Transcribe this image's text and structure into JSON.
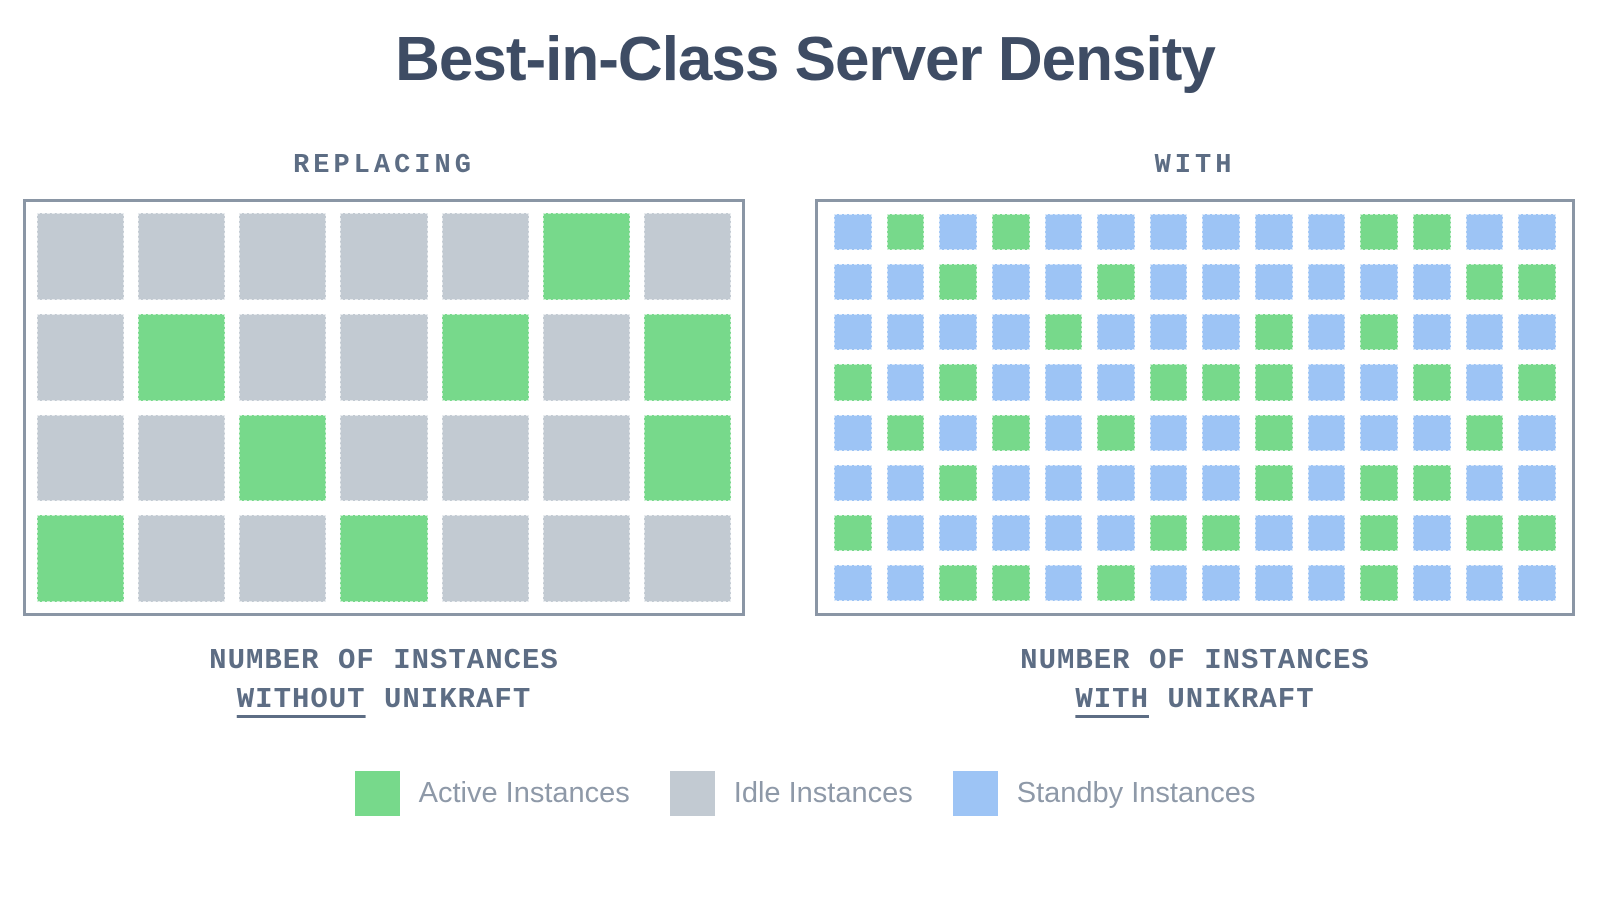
{
  "title": "Best-in-Class Server Density",
  "colors": {
    "active": "#77d98b",
    "idle": "#c2cad2",
    "standby": "#9dc4f5",
    "title_text": "#3e4c64",
    "label_text": "#5d6d84",
    "legend_text": "#8e99a8",
    "panel_border": "#8a96a5"
  },
  "cell_types": {
    "G": "active",
    "I": "idle",
    "S": "standby"
  },
  "panels": [
    {
      "heading": "REPLACING",
      "columns": 7,
      "rows": 4,
      "cells": [
        "IIIIIGI",
        "IGIIGIG",
        "IIGIIIG",
        "GIIGIII"
      ],
      "caption": {
        "line1": "NUMBER OF INSTANCES",
        "emphasis": "WITHOUT",
        "rest": "UNIKRAFT"
      }
    },
    {
      "heading": "WITH",
      "columns": 14,
      "rows": 8,
      "cells": [
        "SGSGSSSSSSGGSS",
        "SSGSSGSSSSSSGG",
        "SSSSGSSSGSGSSS",
        "GSGSSSGGGSSGSG",
        "SGSGSGSSGSSSGS",
        "SSGSSSSSGSGGSS",
        "GSSSSSGGSSGSGG",
        "SSGGSGSSSSGSSS"
      ],
      "caption": {
        "line1": "NUMBER OF INSTANCES",
        "emphasis": "WITH",
        "rest": "UNIKRAFT"
      }
    }
  ],
  "legend": [
    {
      "label": "Active Instances",
      "type": "active"
    },
    {
      "label": "Idle Instances",
      "type": "idle"
    },
    {
      "label": "Standby Instances",
      "type": "standby"
    }
  ],
  "chart_data": [
    {
      "type": "heatmap",
      "title": "REPLACING",
      "subtitle": "NUMBER OF INSTANCES WITHOUT UNIKRAFT",
      "rows": 4,
      "columns": 7,
      "cell_values": [
        "IIIIIGI",
        "IGIIGIG",
        "IIGIIIG",
        "GIIGIII"
      ],
      "value_meaning": {
        "G": "Active Instances",
        "I": "Idle Instances",
        "S": "Standby Instances"
      },
      "counts": {
        "active": 8,
        "idle": 20,
        "standby": 0,
        "total": 28
      },
      "legend_position": "bottom",
      "grid": false
    },
    {
      "type": "heatmap",
      "title": "WITH",
      "subtitle": "NUMBER OF INSTANCES WITH UNIKRAFT",
      "rows": 8,
      "columns": 14,
      "cell_values": [
        "SGSGSSSSSSGGSS",
        "SSGSSGSSSSSSGG",
        "SSSSGSSSGSGSSS",
        "GSGSSSGGGSSGSG",
        "SGSGSGSSGSSSGS",
        "SSGSSSSSGSGGSS",
        "GSSSSSGGSSGSGG",
        "SSGGSGSSSSGSSS"
      ],
      "value_meaning": {
        "G": "Active Instances",
        "I": "Idle Instances",
        "S": "Standby Instances"
      },
      "counts": {
        "active": 37,
        "idle": 0,
        "standby": 75,
        "total": 112
      },
      "legend_position": "bottom",
      "grid": false
    }
  ]
}
